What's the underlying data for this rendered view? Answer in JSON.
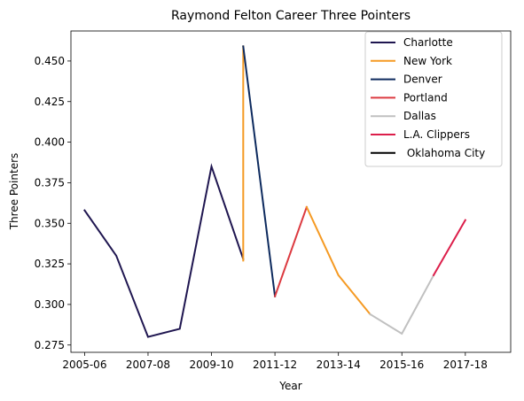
{
  "chart_data": {
    "type": "line",
    "title": "Raymond Felton Career Three Pointers",
    "xlabel": "Year",
    "ylabel": "Three Pointers",
    "xlim": [
      2004.57,
      2018.43
    ],
    "ylim": [
      0.2705,
      0.4685
    ],
    "x_ticks": [
      {
        "value": 2005,
        "label": "2005-06"
      },
      {
        "value": 2007,
        "label": "2007-08"
      },
      {
        "value": 2009,
        "label": "2009-10"
      },
      {
        "value": 2011,
        "label": "2011-12"
      },
      {
        "value": 2013,
        "label": "2013-14"
      },
      {
        "value": 2015,
        "label": "2015-16"
      },
      {
        "value": 2017,
        "label": "2017-18"
      }
    ],
    "y_ticks": [
      {
        "value": 0.275,
        "label": "0.275"
      },
      {
        "value": 0.3,
        "label": "0.300"
      },
      {
        "value": 0.325,
        "label": "0.325"
      },
      {
        "value": 0.35,
        "label": "0.350"
      },
      {
        "value": 0.375,
        "label": "0.375"
      },
      {
        "value": 0.4,
        "label": "0.400"
      },
      {
        "value": 0.425,
        "label": "0.425"
      },
      {
        "value": 0.45,
        "label": "0.450"
      }
    ],
    "grid": false,
    "legend_position": "top-right",
    "series": [
      {
        "name": "Charlotte",
        "color": "#1f1650",
        "points": [
          [
            2005,
            0.358
          ],
          [
            2006,
            0.33
          ],
          [
            2007,
            0.28
          ],
          [
            2008,
            0.285
          ],
          [
            2009,
            0.385
          ],
          [
            2010,
            0.328
          ]
        ]
      },
      {
        "name": "New York",
        "color": "#f59a23",
        "points": [
          [
            2010,
            0.327
          ],
          [
            2010,
            0.459
          ]
        ]
      },
      {
        "name": "Denver",
        "color": "#0d2a5e",
        "points": [
          [
            2010,
            0.459
          ],
          [
            2011,
            0.305
          ]
        ]
      },
      {
        "name": "Portland",
        "color": "#dc3a40",
        "points": [
          [
            2011,
            0.305
          ],
          [
            2012,
            0.36
          ]
        ]
      },
      {
        "name": "New York",
        "color": "#f59a23",
        "points": [
          [
            2012,
            0.36
          ],
          [
            2013,
            0.318
          ],
          [
            2014,
            0.294
          ]
        ]
      },
      {
        "name": "Dallas",
        "color": "#c0c0c0",
        "points": [
          [
            2014,
            0.294
          ],
          [
            2015,
            0.282
          ],
          [
            2016,
            0.318
          ]
        ]
      },
      {
        "name": "L.A. Clippers",
        "color": "#dc1e4a",
        "points": [
          [
            2016,
            0.318
          ],
          [
            2017,
            0.352
          ]
        ]
      }
    ],
    "legend": [
      {
        "label": "Charlotte",
        "color": "#1f1650"
      },
      {
        "label": "New York",
        "color": "#f59a23"
      },
      {
        "label": "Denver",
        "color": "#0d2a5e"
      },
      {
        "label": "Portland",
        "color": "#dc3a40"
      },
      {
        "label": "Dallas",
        "color": "#c0c0c0"
      },
      {
        "label": "L.A. Clippers",
        "color": "#dc1e4a"
      },
      {
        "label": " Oklahoma City",
        "color": "#000000"
      }
    ]
  }
}
